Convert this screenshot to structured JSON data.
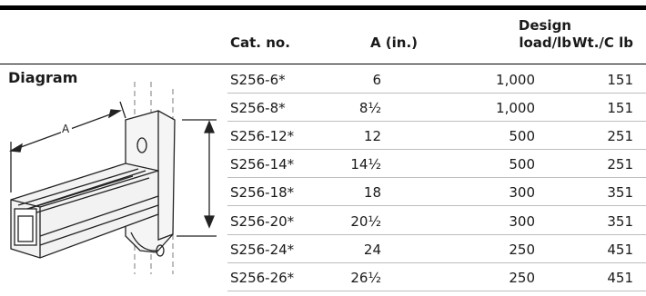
{
  "table": {
    "diagram_label": "Diagram",
    "headers": {
      "cat_no": "Cat. no.",
      "a_in": "A (in.)",
      "design_load_line1": "Design",
      "design_load_line2": "load/lb",
      "weight": "Wt./C lb"
    },
    "rows": [
      {
        "cat_no": "S256-6*",
        "a": "6",
        "load": "1,000",
        "wt": "151"
      },
      {
        "cat_no": "S256-8*",
        "a": "8½",
        "load": "1,000",
        "wt": "151"
      },
      {
        "cat_no": "S256-12*",
        "a": "12",
        "load": "500",
        "wt": "251"
      },
      {
        "cat_no": "S256-14*",
        "a": "14½",
        "load": "500",
        "wt": "251"
      },
      {
        "cat_no": "S256-18*",
        "a": "18",
        "load": "300",
        "wt": "351"
      },
      {
        "cat_no": "S256-20*",
        "a": "20½",
        "load": "300",
        "wt": "351"
      },
      {
        "cat_no": "S256-24*",
        "a": "24",
        "load": "250",
        "wt": "451"
      },
      {
        "cat_no": "S256-26*",
        "a": "26½",
        "load": "250",
        "wt": "451"
      }
    ]
  },
  "diagram": {
    "dimension_label": "A",
    "icon": "channel-bracket-drawing-icon"
  }
}
